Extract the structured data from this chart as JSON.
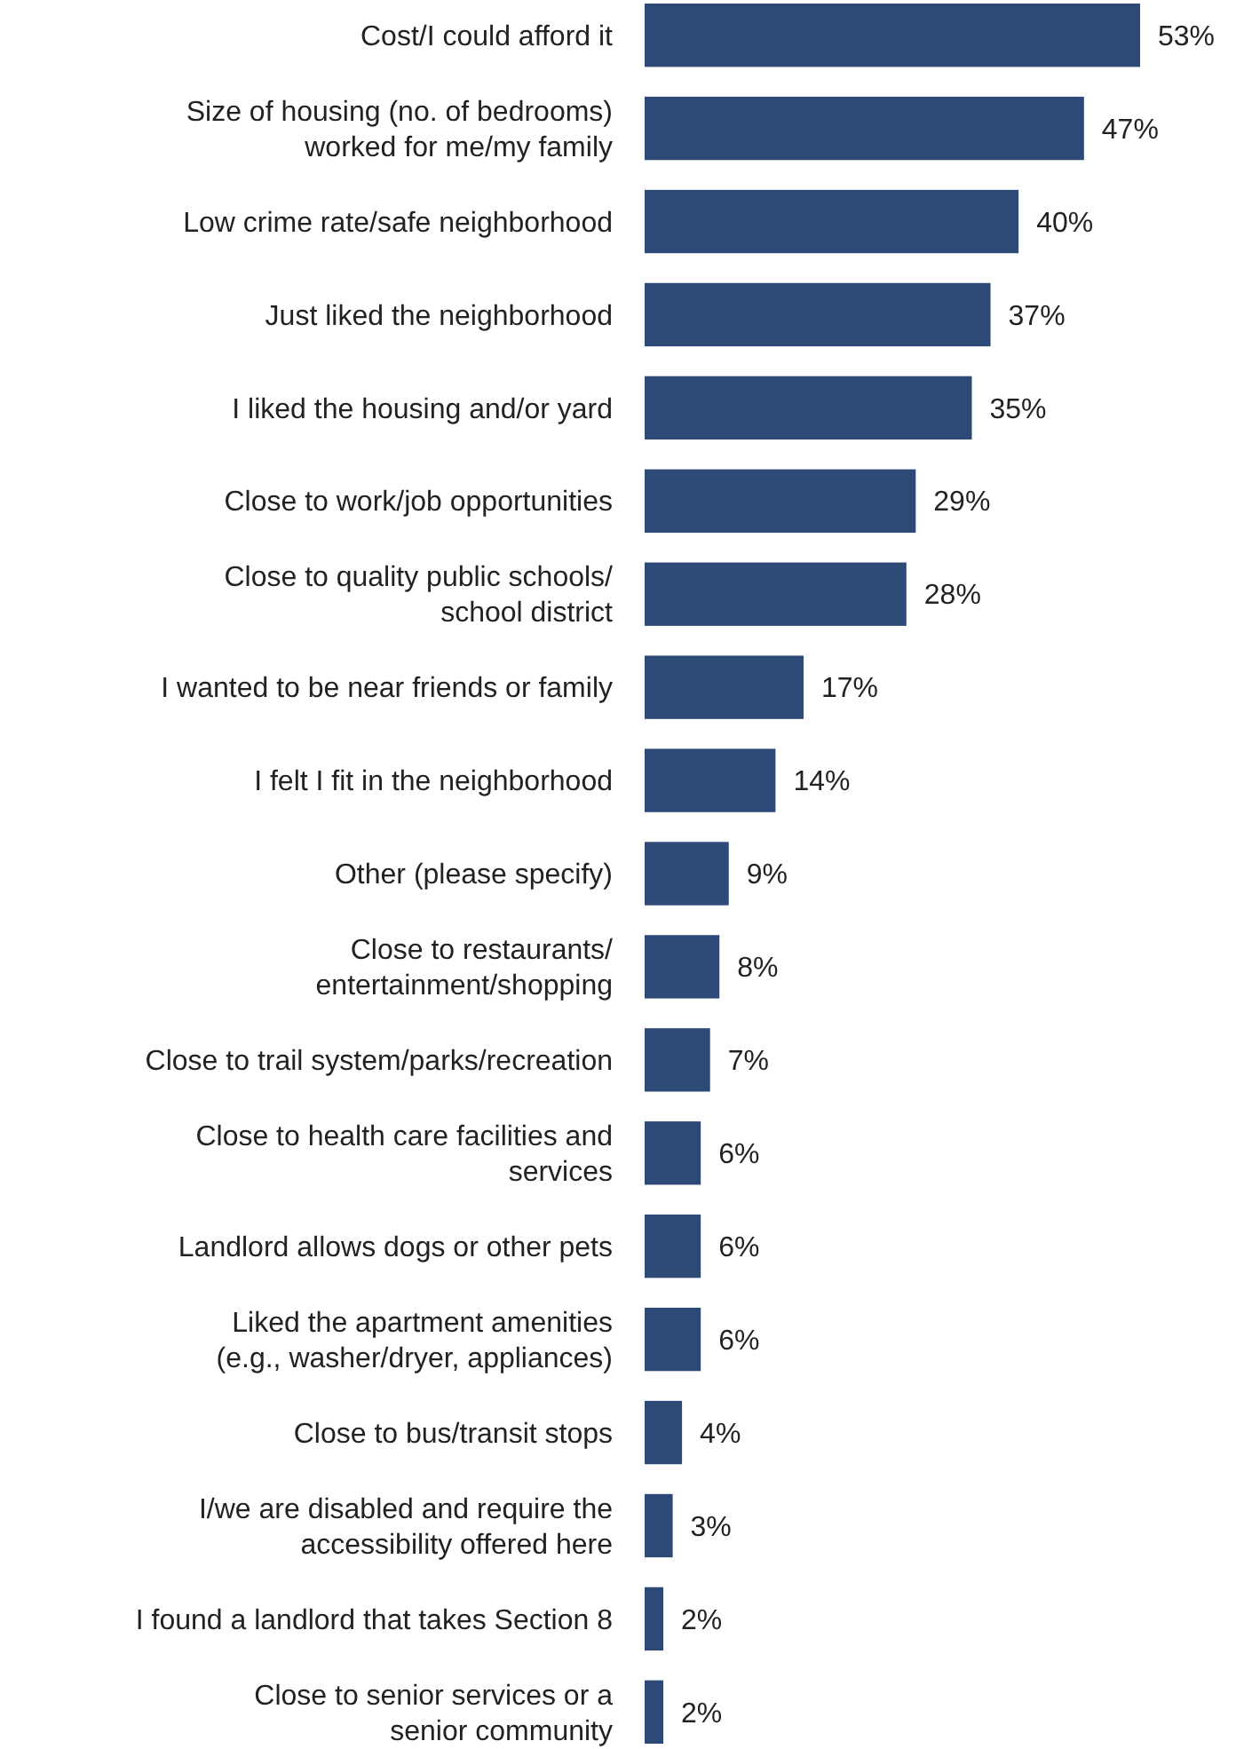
{
  "chart_data": {
    "type": "bar",
    "orientation": "horizontal",
    "categories": [
      "Cost/I could afford it",
      "Size of housing (no. of bedrooms)\nworked for me/my family",
      "Low crime rate/safe neighborhood",
      "Just liked the neighborhood",
      "I liked the housing and/or yard",
      "Close to work/job opportunities",
      "Close to quality public schools/\nschool district",
      "I wanted to be near friends or family",
      "I felt I fit in the neighborhood",
      "Other (please specify)",
      "Close to restaurants/\nentertainment/shopping",
      "Close to trail system/parks/recreation",
      "Close to health care facilities and\nservices",
      "Landlord allows dogs or other pets",
      "Liked the apartment amenities\n(e.g., washer/dryer, appliances)",
      "Close to bus/transit stops",
      "I/we are disabled and require the\naccessibility offered here",
      "I found a landlord that takes Section 8",
      "Close to senior services or a\nsenior community"
    ],
    "values": [
      53,
      47,
      40,
      37,
      35,
      29,
      28,
      17,
      14,
      9,
      8,
      7,
      6,
      6,
      6,
      4,
      3,
      2,
      2
    ],
    "value_labels": [
      "53%",
      "47%",
      "40%",
      "37%",
      "35%",
      "29%",
      "28%",
      "17%",
      "14%",
      "9%",
      "8%",
      "7%",
      "6%",
      "6%",
      "6%",
      "4%",
      "3%",
      "2%",
      "2%"
    ],
    "color": "#2d4a77"
  }
}
